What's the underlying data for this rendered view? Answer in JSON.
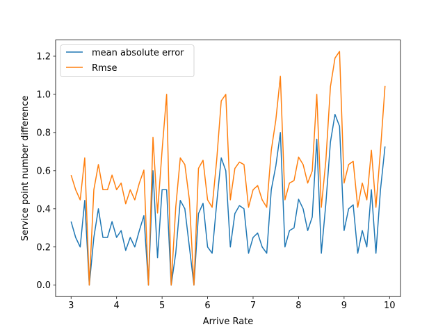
{
  "chart_data": {
    "type": "line",
    "title": "",
    "xlabel": "Arrive Rate",
    "ylabel": "Service point number difference",
    "xlim": [
      2.66,
      10.24
    ],
    "ylim": [
      -0.06,
      1.285
    ],
    "xticks": [
      3,
      4,
      5,
      6,
      7,
      8,
      9,
      10
    ],
    "yticks": [
      0.0,
      0.2,
      0.4,
      0.6,
      0.8,
      1.0,
      1.2
    ],
    "ytick_labels": [
      "0.0",
      "0.2",
      "0.4",
      "0.6",
      "0.8",
      "1.0",
      "1.2"
    ],
    "grid": false,
    "legend_position": "upper-left",
    "x": [
      3.0,
      3.1,
      3.2,
      3.3,
      3.4,
      3.5,
      3.6,
      3.7,
      3.8,
      3.9,
      4.0,
      4.1,
      4.2,
      4.3,
      4.4,
      4.5,
      4.6,
      4.7,
      4.8,
      4.9,
      5.0,
      5.1,
      5.2,
      5.3,
      5.4,
      5.5,
      5.6,
      5.7,
      5.8,
      5.9,
      6.0,
      6.1,
      6.2,
      6.3,
      6.4,
      6.5,
      6.6,
      6.7,
      6.8,
      6.9,
      7.0,
      7.1,
      7.2,
      7.3,
      7.4,
      7.5,
      7.6,
      7.7,
      7.8,
      7.9,
      8.0,
      8.1,
      8.2,
      8.3,
      8.4,
      8.5,
      8.6,
      8.7,
      8.8,
      8.9,
      9.0,
      9.1,
      9.2,
      9.3,
      9.4,
      9.5,
      9.6,
      9.7,
      9.8,
      9.9
    ],
    "series": [
      {
        "name": "mean absolute error",
        "color": "#1f77b4",
        "values": [
          0.333,
          0.25,
          0.2,
          0.444,
          0.0,
          0.25,
          0.4,
          0.25,
          0.25,
          0.333,
          0.25,
          0.286,
          0.182,
          0.25,
          0.2,
          0.286,
          0.364,
          0.0,
          0.6,
          0.143,
          0.5,
          0.5,
          0.0,
          0.167,
          0.444,
          0.4,
          0.2,
          0.0,
          0.375,
          0.429,
          0.2,
          0.167,
          0.429,
          0.667,
          0.6,
          0.2,
          0.375,
          0.417,
          0.4,
          0.167,
          0.25,
          0.273,
          0.2,
          0.167,
          0.5,
          0.625,
          0.8,
          0.2,
          0.286,
          0.3,
          0.45,
          0.4,
          0.286,
          0.357,
          0.765,
          0.167,
          0.429,
          0.75,
          0.895,
          0.833,
          0.286,
          0.4,
          0.421,
          0.167,
          0.286,
          0.2,
          0.5,
          0.167,
          0.5,
          0.727
        ]
      },
      {
        "name": "Rmse",
        "color": "#ff7f0e",
        "values": [
          0.577,
          0.5,
          0.447,
          0.667,
          0.0,
          0.5,
          0.632,
          0.5,
          0.5,
          0.577,
          0.5,
          0.535,
          0.426,
          0.5,
          0.447,
          0.535,
          0.603,
          0.0,
          0.775,
          0.378,
          0.707,
          1.0,
          0.0,
          0.408,
          0.667,
          0.632,
          0.447,
          0.0,
          0.612,
          0.655,
          0.447,
          0.408,
          0.655,
          0.966,
          1.0,
          0.447,
          0.612,
          0.645,
          0.632,
          0.408,
          0.5,
          0.522,
          0.447,
          0.408,
          0.707,
          0.866,
          1.095,
          0.447,
          0.535,
          0.548,
          0.671,
          0.632,
          0.535,
          0.598,
          1.0,
          0.408,
          0.655,
          1.04,
          1.19,
          1.225,
          0.535,
          0.632,
          0.649,
          0.408,
          0.535,
          0.447,
          0.707,
          0.408,
          0.707,
          1.044
        ]
      }
    ]
  }
}
